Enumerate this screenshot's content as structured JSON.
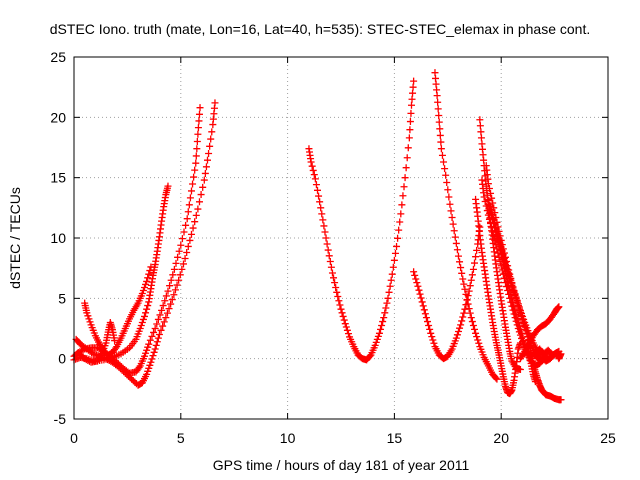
{
  "chart_data": {
    "type": "scatter",
    "title": "dSTEC Iono. truth (mate, Lon=16, Lat=40, h=535): STEC-STEC_elemax in phase cont.",
    "xlabel": "GPS time / hours of day 181 of year 2011",
    "ylabel": "dSTEC  / TECUs",
    "xlim": [
      0,
      25
    ],
    "ylim": [
      -5,
      25
    ],
    "xticks": [
      "0",
      "5",
      "10",
      "15",
      "20",
      "25"
    ],
    "yticks": [
      "-5",
      "0",
      "5",
      "10",
      "15",
      "20",
      "25"
    ],
    "grid": true,
    "marker": "plus",
    "color": "#ff0000",
    "series": [
      {
        "points": [
          [
            0.1,
            1.6
          ],
          [
            0.3,
            1.2
          ],
          [
            0.6,
            0.8
          ],
          [
            0.9,
            0.4
          ],
          [
            1.2,
            0.2
          ],
          [
            1.5,
            0.0
          ],
          [
            1.8,
            -0.3
          ],
          [
            2.1,
            -0.7
          ],
          [
            2.4,
            -1.2
          ],
          [
            2.7,
            -1.7
          ],
          [
            3.0,
            -2.2
          ],
          [
            3.2,
            -2.0
          ],
          [
            3.4,
            -1.3
          ],
          [
            3.6,
            -0.3
          ],
          [
            3.8,
            0.8
          ],
          [
            4.0,
            2.0
          ],
          [
            4.3,
            3.4
          ],
          [
            4.6,
            4.9
          ],
          [
            4.9,
            6.5
          ],
          [
            5.2,
            8.3
          ],
          [
            5.5,
            10.3
          ],
          [
            5.8,
            12.4
          ],
          [
            6.1,
            14.8
          ],
          [
            6.3,
            17.0
          ],
          [
            6.5,
            19.4
          ],
          [
            6.6,
            21.2
          ]
        ]
      },
      {
        "points": [
          [
            0.0,
            0.2
          ],
          [
            0.2,
            0.5
          ],
          [
            0.5,
            0.8
          ],
          [
            0.8,
            0.9
          ],
          [
            1.1,
            0.9
          ],
          [
            1.4,
            0.6
          ],
          [
            1.7,
            0.2
          ],
          [
            2.0,
            -0.3
          ],
          [
            2.3,
            -0.8
          ],
          [
            2.6,
            -1.2
          ],
          [
            2.9,
            -1.1
          ],
          [
            3.1,
            -0.6
          ],
          [
            3.3,
            0.2
          ],
          [
            3.5,
            1.2
          ],
          [
            3.8,
            2.5
          ],
          [
            4.1,
            4.0
          ],
          [
            4.4,
            5.6
          ],
          [
            4.7,
            7.4
          ],
          [
            5.0,
            9.4
          ],
          [
            5.3,
            11.6
          ],
          [
            5.5,
            13.9
          ],
          [
            5.7,
            16.2
          ],
          [
            5.8,
            18.6
          ],
          [
            5.9,
            20.8
          ]
        ]
      },
      {
        "points": [
          [
            0.0,
            -0.1
          ],
          [
            0.3,
            0.1
          ],
          [
            0.6,
            0.0
          ],
          [
            1.0,
            -0.2
          ],
          [
            1.4,
            -0.1
          ],
          [
            1.8,
            0.1
          ],
          [
            2.2,
            0.4
          ],
          [
            2.6,
            0.9
          ],
          [
            2.9,
            1.6
          ],
          [
            3.1,
            2.5
          ],
          [
            3.3,
            3.5
          ],
          [
            3.5,
            4.7
          ],
          [
            3.6,
            5.8
          ],
          [
            3.7,
            6.9
          ],
          [
            3.8,
            7.8
          ],
          [
            3.9,
            8.9
          ],
          [
            4.0,
            10.1
          ],
          [
            4.1,
            11.4
          ],
          [
            4.2,
            12.6
          ],
          [
            4.3,
            13.6
          ],
          [
            4.4,
            14.3
          ]
        ]
      },
      {
        "points": [
          [
            0.5,
            4.6
          ],
          [
            0.6,
            3.8
          ],
          [
            0.8,
            2.8
          ],
          [
            1.0,
            1.9
          ],
          [
            1.2,
            1.2
          ],
          [
            1.4,
            0.6
          ],
          [
            1.6,
            0.3
          ],
          [
            1.8,
            0.5
          ],
          [
            2.0,
            1.0
          ],
          [
            2.2,
            1.7
          ],
          [
            2.4,
            2.5
          ],
          [
            2.6,
            3.3
          ],
          [
            2.8,
            4.0
          ],
          [
            3.0,
            4.6
          ],
          [
            3.2,
            5.4
          ],
          [
            3.4,
            6.4
          ],
          [
            3.6,
            7.6
          ]
        ]
      },
      {
        "points": [
          [
            0.2,
            0.5
          ],
          [
            0.5,
            0.0
          ],
          [
            0.8,
            -0.3
          ],
          [
            1.1,
            -0.2
          ],
          [
            1.3,
            0.4
          ],
          [
            1.5,
            1.3
          ],
          [
            1.6,
            2.2
          ],
          [
            1.7,
            3.0
          ],
          [
            1.8,
            2.4
          ],
          [
            1.9,
            1.5
          ]
        ]
      },
      {
        "points": [
          [
            11.0,
            17.4
          ],
          [
            11.1,
            16.3
          ],
          [
            11.3,
            14.9
          ],
          [
            11.5,
            13.0
          ],
          [
            11.7,
            11.0
          ],
          [
            11.9,
            9.0
          ],
          [
            12.1,
            7.1
          ],
          [
            12.3,
            5.5
          ],
          [
            12.5,
            4.1
          ],
          [
            12.7,
            2.9
          ],
          [
            12.9,
            1.8
          ],
          [
            13.1,
            1.0
          ],
          [
            13.3,
            0.3
          ],
          [
            13.5,
            0.0
          ],
          [
            13.7,
            -0.1
          ],
          [
            13.9,
            0.3
          ],
          [
            14.1,
            1.1
          ],
          [
            14.3,
            2.1
          ],
          [
            14.5,
            3.4
          ],
          [
            14.7,
            5.0
          ],
          [
            14.9,
            7.0
          ],
          [
            15.1,
            9.3
          ],
          [
            15.3,
            12.0
          ],
          [
            15.5,
            15.0
          ],
          [
            15.7,
            18.3
          ],
          [
            15.8,
            21.0
          ],
          [
            15.9,
            23.0
          ]
        ]
      },
      {
        "points": [
          [
            15.9,
            7.2
          ],
          [
            16.1,
            6.0
          ],
          [
            16.3,
            4.7
          ],
          [
            16.5,
            3.4
          ],
          [
            16.7,
            2.1
          ],
          [
            16.9,
            1.0
          ],
          [
            17.1,
            0.3
          ],
          [
            17.3,
            0.0
          ],
          [
            17.5,
            0.2
          ],
          [
            17.7,
            0.8
          ],
          [
            17.9,
            1.7
          ],
          [
            18.1,
            2.8
          ],
          [
            18.3,
            4.1
          ],
          [
            18.5,
            5.6
          ],
          [
            18.7,
            7.4
          ],
          [
            18.9,
            9.5
          ],
          [
            19.0,
            10.9
          ]
        ]
      },
      {
        "points": [
          [
            16.9,
            23.7
          ],
          [
            17.0,
            21.8
          ],
          [
            17.1,
            19.6
          ],
          [
            17.2,
            17.4
          ],
          [
            17.4,
            15.2
          ],
          [
            17.6,
            12.8
          ],
          [
            17.8,
            10.6
          ],
          [
            18.0,
            8.5
          ],
          [
            18.2,
            6.6
          ],
          [
            18.4,
            4.9
          ],
          [
            18.6,
            3.4
          ],
          [
            18.8,
            2.1
          ],
          [
            19.0,
            1.0
          ],
          [
            19.2,
            0.1
          ],
          [
            19.4,
            -0.6
          ],
          [
            19.6,
            -1.3
          ],
          [
            19.8,
            -1.7
          ]
        ]
      },
      {
        "points": [
          [
            18.8,
            13.2
          ],
          [
            18.9,
            11.8
          ],
          [
            19.0,
            10.2
          ],
          [
            19.1,
            8.8
          ],
          [
            19.2,
            7.6
          ],
          [
            19.3,
            6.4
          ],
          [
            19.4,
            5.2
          ],
          [
            19.5,
            4.1
          ],
          [
            19.6,
            3.0
          ],
          [
            19.7,
            2.0
          ],
          [
            19.8,
            1.1
          ],
          [
            19.9,
            0.3
          ],
          [
            20.0,
            -0.6
          ],
          [
            20.1,
            -1.5
          ],
          [
            20.2,
            -2.3
          ],
          [
            20.3,
            -2.8
          ],
          [
            20.4,
            -2.9
          ],
          [
            20.5,
            -2.6
          ],
          [
            20.6,
            -1.8
          ],
          [
            20.7,
            -0.6
          ],
          [
            20.8,
            0.8
          ],
          [
            20.9,
            1.3
          ]
        ]
      },
      {
        "points": [
          [
            19.0,
            19.8
          ],
          [
            19.1,
            17.8
          ],
          [
            19.2,
            16.0
          ],
          [
            19.3,
            14.3
          ],
          [
            19.4,
            12.8
          ],
          [
            19.5,
            11.3
          ],
          [
            19.6,
            9.9
          ],
          [
            19.7,
            8.5
          ],
          [
            19.8,
            7.2
          ],
          [
            19.9,
            6.0
          ],
          [
            20.0,
            4.8
          ],
          [
            20.1,
            3.7
          ],
          [
            20.2,
            2.6
          ],
          [
            20.3,
            1.6
          ],
          [
            20.4,
            0.6
          ],
          [
            20.5,
            -0.2
          ],
          [
            20.7,
            -0.8
          ],
          [
            20.9,
            -0.9
          ]
        ]
      },
      {
        "points": [
          [
            19.1,
            14.8
          ],
          [
            19.2,
            13.4
          ],
          [
            19.4,
            11.9
          ],
          [
            19.6,
            10.5
          ],
          [
            19.8,
            9.1
          ],
          [
            20.0,
            7.7
          ],
          [
            20.2,
            6.3
          ],
          [
            20.4,
            5.0
          ],
          [
            20.6,
            3.7
          ],
          [
            20.8,
            2.5
          ],
          [
            21.0,
            1.4
          ],
          [
            21.2,
            0.5
          ],
          [
            21.4,
            -0.2
          ],
          [
            21.6,
            -0.6
          ],
          [
            21.8,
            -0.4
          ],
          [
            22.0,
            0.0
          ],
          [
            22.2,
            0.2
          ]
        ]
      },
      {
        "points": [
          [
            19.3,
            16.0
          ],
          [
            19.4,
            14.5
          ],
          [
            19.6,
            12.9
          ],
          [
            19.8,
            11.3
          ],
          [
            20.0,
            9.8
          ],
          [
            20.2,
            8.4
          ],
          [
            20.4,
            7.0
          ],
          [
            20.6,
            5.6
          ],
          [
            20.8,
            4.4
          ],
          [
            21.0,
            3.2
          ],
          [
            21.2,
            2.1
          ],
          [
            21.4,
            1.1
          ],
          [
            21.6,
            0.3
          ],
          [
            21.8,
            -0.1
          ]
        ]
      },
      {
        "points": [
          [
            19.5,
            12.6
          ],
          [
            19.7,
            11.2
          ],
          [
            19.9,
            9.9
          ],
          [
            20.1,
            8.6
          ],
          [
            20.3,
            7.4
          ],
          [
            20.5,
            6.2
          ],
          [
            20.7,
            5.1
          ],
          [
            20.9,
            4.0
          ],
          [
            21.1,
            3.0
          ],
          [
            21.3,
            2.1
          ],
          [
            21.5,
            1.3
          ],
          [
            21.7,
            0.6
          ],
          [
            21.9,
            0.1
          ],
          [
            22.1,
            -0.2
          ],
          [
            22.3,
            0.0
          ],
          [
            22.5,
            0.4
          ],
          [
            22.7,
            0.6
          ]
        ]
      },
      {
        "points": [
          [
            19.6,
            11.5
          ],
          [
            19.8,
            10.3
          ],
          [
            20.0,
            9.0
          ],
          [
            20.2,
            7.8
          ],
          [
            20.4,
            6.6
          ],
          [
            20.6,
            5.5
          ],
          [
            20.8,
            4.4
          ],
          [
            21.0,
            3.3
          ],
          [
            21.2,
            2.3
          ],
          [
            21.3,
            1.3
          ],
          [
            21.4,
            0.4
          ],
          [
            21.5,
            -0.4
          ],
          [
            21.6,
            -1.1
          ],
          [
            21.7,
            -1.7
          ],
          [
            21.8,
            -2.2
          ],
          [
            21.9,
            -2.6
          ],
          [
            22.0,
            -2.8
          ],
          [
            22.1,
            -3.0
          ],
          [
            22.3,
            -3.1
          ],
          [
            22.5,
            -3.3
          ],
          [
            22.7,
            -3.4
          ],
          [
            22.8,
            -3.4
          ]
        ]
      },
      {
        "points": [
          [
            19.4,
            13.1
          ],
          [
            19.6,
            11.6
          ],
          [
            19.8,
            10.1
          ],
          [
            20.0,
            8.6
          ],
          [
            20.2,
            7.1
          ],
          [
            20.4,
            5.7
          ],
          [
            20.6,
            4.3
          ],
          [
            20.8,
            3.0
          ],
          [
            21.0,
            1.8
          ],
          [
            21.2,
            0.6
          ],
          [
            21.4,
            -0.4
          ],
          [
            21.5,
            -1.3
          ],
          [
            21.6,
            -1.9
          ]
        ]
      },
      {
        "points": [
          [
            20.9,
            0.0
          ],
          [
            21.1,
            0.6
          ],
          [
            21.3,
            1.3
          ],
          [
            21.5,
            1.9
          ],
          [
            21.7,
            2.4
          ],
          [
            21.9,
            2.7
          ],
          [
            22.1,
            2.9
          ],
          [
            22.3,
            3.3
          ],
          [
            22.5,
            3.8
          ],
          [
            22.6,
            4.1
          ],
          [
            22.7,
            4.3
          ]
        ]
      },
      {
        "points": [
          [
            21.0,
            0.3
          ],
          [
            21.2,
            0.6
          ],
          [
            21.4,
            0.2
          ],
          [
            21.6,
            0.5
          ],
          [
            21.8,
            0.8
          ],
          [
            22.0,
            0.4
          ],
          [
            22.2,
            0.7
          ],
          [
            22.4,
            0.3
          ],
          [
            22.6,
            0.5
          ],
          [
            22.7,
            0.0
          ],
          [
            22.8,
            0.4
          ]
        ]
      }
    ]
  }
}
